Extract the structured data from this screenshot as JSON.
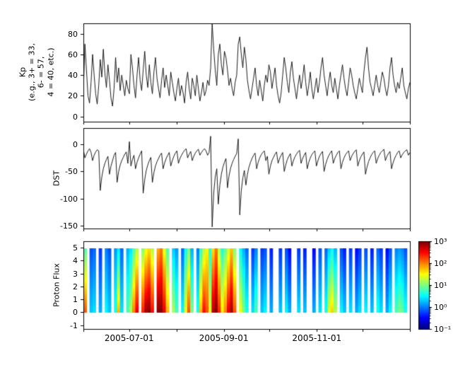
{
  "figure": {
    "background": "#ffffff",
    "line_color": "#000000",
    "frame_color": "#000000"
  },
  "x_axis": {
    "tick_labels": [
      {
        "day": 30,
        "label": "2005-07-01"
      },
      {
        "day": 92,
        "label": "2005-09-01"
      },
      {
        "day": 153,
        "label": "2005-11-01"
      }
    ],
    "month_tick_days": [
      0,
      30,
      61,
      92,
      122,
      153,
      183,
      214
    ],
    "range_days": [
      0,
      214
    ]
  },
  "colorbar": {
    "scale": "log",
    "ticks": [
      {
        "log": 3,
        "label": "10³"
      },
      {
        "log": 2,
        "label": "10²"
      },
      {
        "log": 1,
        "label": "10¹"
      },
      {
        "log": 0,
        "label": "10⁰"
      },
      {
        "log": -1,
        "label": "10⁻¹"
      }
    ]
  },
  "chart_data": [
    {
      "type": "line",
      "name": "kp_index",
      "ylabel_lines": [
        "Kp",
        "(e.g., 3+ = 33,",
        "6- = 57,",
        "4 = 40, etc.)"
      ],
      "ylim": [
        -5,
        90
      ],
      "yticks": [
        0,
        20,
        40,
        60,
        80
      ],
      "x_days_start": 0,
      "x_days_end": 214,
      "values": [
        25,
        70,
        45,
        20,
        13,
        33,
        60,
        40,
        22,
        12,
        30,
        55,
        38,
        65,
        42,
        28,
        50,
        35,
        18,
        10,
        27,
        57,
        33,
        47,
        25,
        40,
        30,
        20,
        35,
        27,
        22,
        60,
        47,
        30,
        18,
        40,
        57,
        35,
        25,
        45,
        63,
        40,
        28,
        50,
        33,
        22,
        43,
        57,
        37,
        27,
        18,
        35,
        47,
        28,
        40,
        30,
        20,
        43,
        33,
        23,
        15,
        27,
        37,
        20,
        30,
        23,
        13,
        33,
        43,
        27,
        17,
        37,
        30,
        20,
        40,
        27,
        15,
        23,
        33,
        20,
        25,
        35,
        30,
        47,
        90,
        65,
        45,
        30,
        60,
        70,
        50,
        40,
        63,
        57,
        45,
        30,
        37,
        27,
        20,
        33,
        40,
        70,
        77,
        60,
        47,
        67,
        55,
        35,
        25,
        17,
        27,
        37,
        47,
        30,
        20,
        35,
        25,
        15,
        30,
        40,
        33,
        50,
        43,
        27,
        37,
        47,
        30,
        20,
        13,
        23,
        40,
        57,
        47,
        33,
        23,
        43,
        53,
        37,
        27,
        17,
        30,
        40,
        27,
        37,
        50,
        33,
        20,
        30,
        43,
        27,
        17,
        27,
        37,
        23,
        33,
        47,
        57,
        40,
        30,
        20,
        33,
        43,
        30,
        23,
        37,
        27,
        17,
        30,
        40,
        50,
        37,
        27,
        20,
        33,
        47,
        40,
        30,
        23,
        17,
        27,
        37,
        30,
        23,
        43,
        57,
        67,
        47,
        33,
        27,
        20,
        30,
        40,
        30,
        23,
        33,
        43,
        37,
        27,
        20,
        30,
        47,
        57,
        40,
        30,
        23,
        33,
        27,
        37,
        47,
        30,
        23,
        17,
        27,
        33
      ]
    },
    {
      "type": "line",
      "name": "dst_index",
      "ylabel": "DST",
      "ylim": [
        -155,
        30
      ],
      "yticks": [
        0,
        -50,
        -100,
        -150
      ],
      "x_days_start": 0,
      "x_days_end": 214,
      "values": [
        -10,
        -25,
        -18,
        -12,
        -8,
        -15,
        -30,
        -20,
        -14,
        -10,
        -12,
        -85,
        -60,
        -45,
        -35,
        -28,
        -22,
        -55,
        -40,
        -30,
        -20,
        -15,
        -70,
        -50,
        -38,
        -30,
        -24,
        -18,
        -14,
        -35,
        5,
        -40,
        -28,
        -20,
        -45,
        -33,
        -25,
        -18,
        -12,
        -90,
        -65,
        -48,
        -38,
        -30,
        -24,
        -70,
        -52,
        -40,
        -32,
        -26,
        -20,
        -16,
        -45,
        -34,
        -26,
        -20,
        -15,
        -40,
        -30,
        -22,
        -16,
        -12,
        -35,
        -26,
        -20,
        -15,
        -11,
        -8,
        -25,
        -18,
        -13,
        -30,
        -22,
        -16,
        -12,
        -9,
        -20,
        -15,
        -11,
        -8,
        -12,
        -20,
        -15,
        15,
        -152,
        -90,
        -60,
        -45,
        -110,
        -75,
        -55,
        -42,
        -33,
        -26,
        -80,
        -58,
        -44,
        -35,
        -28,
        -22,
        -17,
        10,
        -130,
        -85,
        -62,
        -48,
        -75,
        -55,
        -42,
        -33,
        -26,
        -20,
        -16,
        -45,
        -33,
        -25,
        -19,
        -15,
        -12,
        -30,
        -22,
        -55,
        -40,
        -30,
        -24,
        -18,
        -14,
        -35,
        -26,
        -20,
        -15,
        -50,
        -38,
        -28,
        -22,
        -17,
        -40,
        -30,
        -23,
        -18,
        -14,
        -11,
        -35,
        -26,
        -20,
        -15,
        -45,
        -33,
        -25,
        -19,
        -15,
        -12,
        -40,
        -30,
        -22,
        -17,
        -13,
        -50,
        -37,
        -28,
        -21,
        -16,
        -12,
        -35,
        -26,
        -20,
        -15,
        -12,
        -45,
        -33,
        -25,
        -19,
        -15,
        -12,
        -30,
        -22,
        -17,
        -13,
        -10,
        -40,
        -30,
        -23,
        -18,
        -14,
        -55,
        -42,
        -32,
        -25,
        -19,
        -15,
        -12,
        -35,
        -26,
        -20,
        -15,
        -12,
        -9,
        -30,
        -22,
        -17,
        -13,
        -45,
        -34,
        -26,
        -20,
        -15,
        -12,
        -25,
        -19,
        -15,
        -12,
        -10,
        -20,
        -15
      ]
    },
    {
      "type": "heatmap",
      "name": "proton_flux",
      "ylabel": "Proton Flux",
      "ylim": [
        -1.3,
        5.5
      ],
      "yticks": [
        -1,
        0,
        1,
        2,
        3,
        4,
        5
      ],
      "heat_y_extent": [
        0,
        5
      ],
      "log10_flux_range": [
        -1,
        3
      ],
      "colormap": "jet",
      "columns_days_per_bin": 2,
      "columns": [
        [
          2.2,
          0.8
        ],
        null,
        [
          0.3,
          -0.2
        ],
        [
          0.4,
          -0.1
        ],
        null,
        [
          0.2,
          -0.3
        ],
        null,
        [
          0.5,
          0.0
        ],
        [
          0.3,
          -0.2
        ],
        null,
        [
          0.6,
          0.1
        ],
        [
          1.8,
          0.4
        ],
        [
          0.4,
          -0.1
        ],
        null,
        [
          0.8,
          0.2
        ],
        [
          1.2,
          0.4
        ],
        [
          2.0,
          0.8
        ],
        [
          2.6,
          1.2
        ],
        null,
        [
          2.4,
          1.0
        ],
        [
          2.9,
          1.4
        ],
        [
          3.0,
          1.6
        ],
        [
          2.5,
          1.2
        ],
        null,
        [
          3.0,
          1.8
        ],
        [
          3.0,
          2.0
        ],
        [
          2.6,
          1.4
        ],
        [
          1.8,
          0.8
        ],
        null,
        [
          1.2,
          0.3
        ],
        [
          0.8,
          0.1
        ],
        null,
        [
          0.5,
          -0.1
        ],
        [
          1.5,
          0.5
        ],
        [
          2.2,
          1.0
        ],
        [
          1.0,
          0.2
        ],
        null,
        [
          0.6,
          0.0
        ],
        [
          1.8,
          0.7
        ],
        [
          2.5,
          1.2
        ],
        [
          2.2,
          1.5
        ],
        [
          1.4,
          0.6
        ],
        [
          2.8,
          1.6
        ],
        [
          3.0,
          2.0
        ],
        [
          2.4,
          1.2
        ],
        [
          1.6,
          0.6
        ],
        [
          2.0,
          0.9
        ],
        [
          2.6,
          1.3
        ],
        [
          2.9,
          1.7
        ],
        [
          2.2,
          1.0
        ],
        null,
        [
          1.5,
          0.5
        ],
        [
          1.0,
          0.2
        ],
        [
          0.6,
          -0.1
        ],
        null,
        [
          0.4,
          -0.3
        ],
        [
          0.8,
          0.0
        ],
        null,
        [
          0.3,
          -0.3
        ],
        [
          0.5,
          -0.2
        ],
        null,
        [
          0.2,
          -0.4
        ],
        null,
        null,
        [
          0.3,
          -0.3
        ],
        null,
        [
          0.5,
          -0.2
        ],
        [
          0.2,
          -0.5
        ],
        null,
        null,
        [
          0.4,
          -0.3
        ],
        null,
        [
          0.3,
          -0.4
        ],
        null,
        null,
        [
          0.2,
          -0.5
        ],
        null,
        [
          0.4,
          -0.2
        ],
        null,
        [
          0.6,
          -0.1
        ],
        [
          1.4,
          0.3
        ],
        [
          1.7,
          0.5
        ],
        [
          1.2,
          0.2
        ],
        null,
        [
          0.5,
          -0.2
        ],
        [
          0.3,
          -0.4
        ],
        null,
        [
          0.4,
          -0.3
        ],
        null,
        [
          0.2,
          -0.5
        ],
        [
          0.4,
          -0.3
        ],
        null,
        [
          0.5,
          -0.2
        ],
        null,
        [
          0.3,
          -0.4
        ],
        null,
        [
          0.6,
          -0.1
        ],
        [
          0.4,
          -0.3
        ],
        null,
        [
          0.2,
          -0.5
        ],
        [
          0.5,
          -0.2
        ],
        null,
        [
          0.8,
          0.0
        ],
        [
          1.0,
          0.1
        ],
        [
          0.9,
          0.0
        ],
        [
          0.6,
          -0.2
        ],
        null
      ]
    }
  ]
}
